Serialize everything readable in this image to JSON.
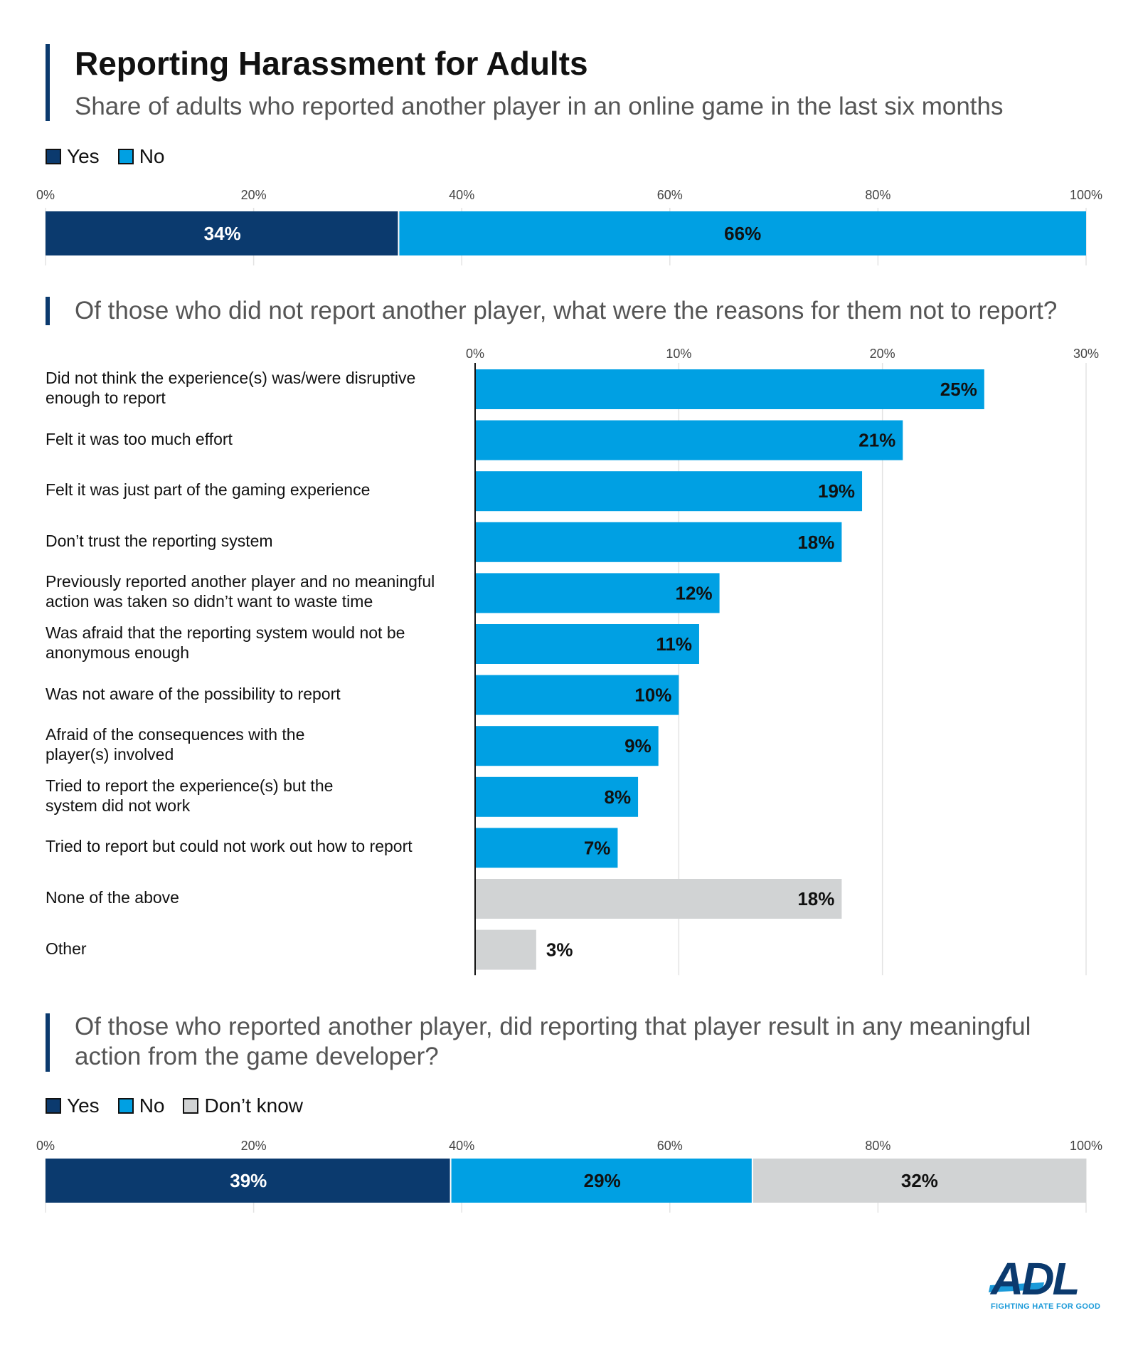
{
  "header": {
    "title": "Reporting Harassment for Adults",
    "subtitle": "Share of adults who reported another player in an online game in the last six months"
  },
  "colors": {
    "yes": "#0b3a6e",
    "no": "#00a0e3",
    "dontknow": "#d1d3d4",
    "accent": "#0b3a6e",
    "brand": "#0b3a6e",
    "brand_accent": "#1a9ad9"
  },
  "section2": {
    "question": "Of those who did not report another player, what were the reasons for them not to report?"
  },
  "section3": {
    "question_line1": "Of those who reported another player, did reporting that player result in any meaningful",
    "question_line2": "action from the game developer?"
  },
  "logo": {
    "text": "ADL",
    "tagline": "FIGHTING HATE FOR GOOD",
    "icon": "adl-logo-icon"
  },
  "chart_data": [
    {
      "type": "bar",
      "orientation": "horizontal-stacked",
      "legend": [
        {
          "name": "Yes",
          "color": "#0b3a6e"
        },
        {
          "name": "No",
          "color": "#00a0e3"
        }
      ],
      "legend_placement": "top-left",
      "xlim": [
        0,
        100
      ],
      "ticks": [
        "0%",
        "20%",
        "40%",
        "60%",
        "80%",
        "100%"
      ],
      "tick_values": [
        0,
        20,
        40,
        60,
        80,
        100
      ],
      "series": [
        {
          "name": "Yes",
          "value": 34,
          "label": "34%"
        },
        {
          "name": "No",
          "value": 66,
          "label": "66%"
        }
      ],
      "grid": true
    },
    {
      "type": "bar",
      "orientation": "horizontal",
      "xlim": [
        0,
        30
      ],
      "ticks": [
        "0%",
        "10%",
        "20%",
        "30%"
      ],
      "tick_values": [
        0,
        10,
        20,
        30
      ],
      "grid": true,
      "categories": [
        {
          "label": "Did not think the experience(s) was/were disruptive\nenough to report",
          "value": 25,
          "value_label": "25%",
          "group": "reason"
        },
        {
          "label": "Felt it was too much effort",
          "value": 21,
          "value_label": "21%",
          "group": "reason"
        },
        {
          "label": "Felt it was just part of the gaming experience",
          "value": 19,
          "value_label": "19%",
          "group": "reason"
        },
        {
          "label": "Don’t trust the reporting system",
          "value": 18,
          "value_label": "18%",
          "group": "reason"
        },
        {
          "label": "Previously reported another player and no meaningful\naction was taken so didn’t want to waste time",
          "value": 12,
          "value_label": "12%",
          "group": "reason"
        },
        {
          "label": "Was afraid that the reporting system would not be\nanonymous enough",
          "value": 11,
          "value_label": "11%",
          "group": "reason"
        },
        {
          "label": "Was not aware of the possibility to report",
          "value": 10,
          "value_label": "10%",
          "group": "reason"
        },
        {
          "label": "Afraid of the consequences with the\nplayer(s) involved",
          "value": 9,
          "value_label": "9%",
          "group": "reason"
        },
        {
          "label": "Tried to report the experience(s) but the\nsystem did not work",
          "value": 8,
          "value_label": "8%",
          "group": "reason"
        },
        {
          "label": "Tried to report but could not work out how to report",
          "value": 7,
          "value_label": "7%",
          "group": "reason"
        },
        {
          "label": "None of the above",
          "value": 18,
          "value_label": "18%",
          "group": "other"
        },
        {
          "label": "Other",
          "value": 3,
          "value_label": "3%",
          "group": "other"
        }
      ]
    },
    {
      "type": "bar",
      "orientation": "horizontal-stacked",
      "legend": [
        {
          "name": "Yes",
          "color": "#0b3a6e"
        },
        {
          "name": "No",
          "color": "#00a0e3"
        },
        {
          "name": "Don’t know",
          "color": "#d1d3d4"
        }
      ],
      "legend_placement": "top-left",
      "xlim": [
        0,
        100
      ],
      "ticks": [
        "0%",
        "20%",
        "40%",
        "60%",
        "80%",
        "100%"
      ],
      "tick_values": [
        0,
        20,
        40,
        60,
        80,
        100
      ],
      "series": [
        {
          "name": "Yes",
          "value": 39,
          "label": "39%"
        },
        {
          "name": "No",
          "value": 29,
          "label": "29%"
        },
        {
          "name": "Don’t know",
          "value": 32,
          "label": "32%"
        }
      ],
      "grid": true
    }
  ]
}
